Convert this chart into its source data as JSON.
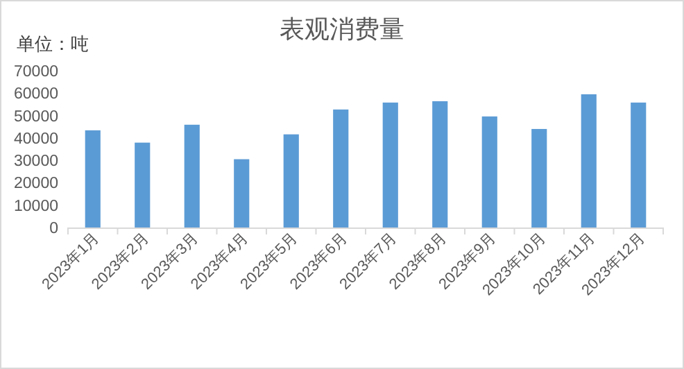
{
  "chart_data": {
    "type": "bar",
    "title": "表观消费量",
    "ylabel": "单位：吨",
    "categories": [
      "2023年1月",
      "2023年2月",
      "2023年3月",
      "2023年4月",
      "2023年5月",
      "2023年6月",
      "2023年7月",
      "2023年8月",
      "2023年9月",
      "2023年10月",
      "2023年11月",
      "2023年12月"
    ],
    "values": [
      43400,
      37900,
      45900,
      30500,
      41600,
      52700,
      55800,
      56400,
      49600,
      44000,
      59500,
      55800
    ],
    "color": "#5b9bd5",
    "ylim": [
      0,
      70000
    ],
    "yticks": [
      0,
      10000,
      20000,
      30000,
      40000,
      50000,
      60000,
      70000
    ],
    "grid": false
  }
}
